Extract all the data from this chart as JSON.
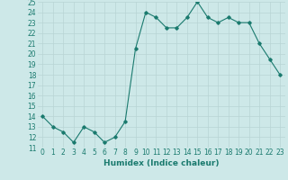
{
  "x": [
    0,
    1,
    2,
    3,
    4,
    5,
    6,
    7,
    8,
    9,
    10,
    11,
    12,
    13,
    14,
    15,
    16,
    17,
    18,
    19,
    20,
    21,
    22,
    23
  ],
  "y": [
    14,
    13,
    12.5,
    11.5,
    13,
    12.5,
    11.5,
    12,
    13.5,
    20.5,
    24,
    23.5,
    22.5,
    22.5,
    23.5,
    25,
    23.5,
    23,
    23.5,
    23,
    23,
    21,
    19.5,
    18
  ],
  "line_color": "#1a7a6e",
  "marker": "D",
  "markersize": 1.8,
  "linewidth": 0.8,
  "xlabel": "Humidex (Indice chaleur)",
  "ylim": [
    11,
    25
  ],
  "xlim": [
    -0.5,
    23.5
  ],
  "yticks": [
    11,
    12,
    13,
    14,
    15,
    16,
    17,
    18,
    19,
    20,
    21,
    22,
    23,
    24,
    25
  ],
  "xticks": [
    0,
    1,
    2,
    3,
    4,
    5,
    6,
    7,
    8,
    9,
    10,
    11,
    12,
    13,
    14,
    15,
    16,
    17,
    18,
    19,
    20,
    21,
    22,
    23
  ],
  "bg_color": "#cde8e8",
  "grid_color": "#b8d4d4",
  "xlabel_fontsize": 6.5,
  "tick_fontsize": 5.5,
  "tick_color": "#1a7a6e"
}
